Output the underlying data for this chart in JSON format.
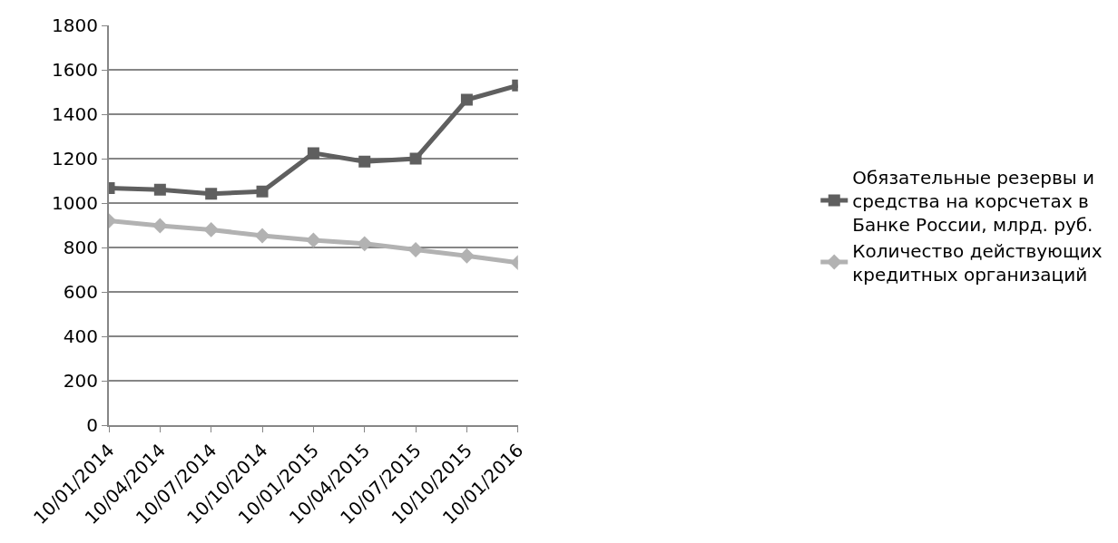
{
  "chart_data": {
    "type": "line",
    "categories": [
      "10/01/2014",
      "10/04/2014",
      "10/07/2014",
      "10/10/2014",
      "10/01/2015",
      "10/04/2015",
      "10/07/2015",
      "10/10/2015",
      "10/01/2016"
    ],
    "series": [
      {
        "name": "Обязательные резервы и средства на корсчетах в Банке России, млрд. руб.",
        "color": "#5f5f5f",
        "marker": "square",
        "values": [
          1067,
          1060,
          1042,
          1052,
          1225,
          1187,
          1200,
          1465,
          1530
        ]
      },
      {
        "name": "Количество действующих кредитных организаций",
        "color": "#b2b2b2",
        "marker": "diamond",
        "values": [
          920,
          898,
          880,
          853,
          833,
          817,
          790,
          762,
          732
        ]
      }
    ],
    "ylim": [
      0,
      1800
    ],
    "yticks": [
      0,
      200,
      400,
      600,
      800,
      1000,
      1200,
      1400,
      1600,
      1800
    ],
    "grid": "y",
    "legend": "right",
    "line_style": "solid"
  }
}
